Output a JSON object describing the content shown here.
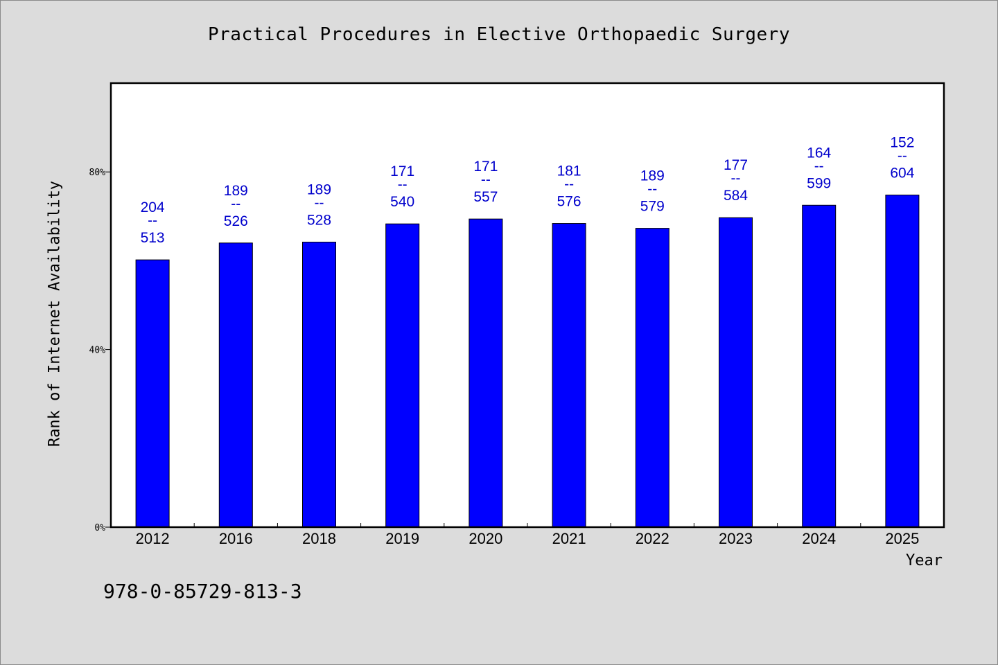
{
  "chart_data": {
    "type": "bar",
    "title": "Practical Procedures in Elective Orthopaedic Surgery",
    "xlabel": "Year",
    "ylabel": "Rank of Internet Availability",
    "categories": [
      "2012",
      "2016",
      "2018",
      "2019",
      "2020",
      "2021",
      "2022",
      "2023",
      "2024",
      "2025"
    ],
    "values": [
      60.2,
      64.0,
      64.2,
      68.3,
      69.4,
      68.4,
      67.3,
      69.7,
      72.5,
      74.8
    ],
    "value_unit": "%",
    "ylim": [
      0,
      100
    ],
    "yticks": [
      0,
      40,
      80
    ],
    "ytick_labels": [
      "0%",
      "40%",
      "80%"
    ],
    "data_labels": [
      {
        "top": "204",
        "sep": "--",
        "bottom": "513"
      },
      {
        "top": "189",
        "sep": "--",
        "bottom": "526"
      },
      {
        "top": "189",
        "sep": "--",
        "bottom": "528"
      },
      {
        "top": "171",
        "sep": "--",
        "bottom": "540"
      },
      {
        "top": "171",
        "sep": "--",
        "bottom": "557"
      },
      {
        "top": "181",
        "sep": "--",
        "bottom": "576"
      },
      {
        "top": "189",
        "sep": "--",
        "bottom": "579"
      },
      {
        "top": "177",
        "sep": "--",
        "bottom": "584"
      },
      {
        "top": "164",
        "sep": "--",
        "bottom": "599"
      },
      {
        "top": "152",
        "sep": "--",
        "bottom": "604"
      }
    ],
    "grid": false,
    "bar_color": "#0000ff",
    "label_color": "#0000cc",
    "background_color": "#dcdcdc",
    "plot_background": "#ffffff"
  },
  "footer": {
    "isbn": "978-0-85729-813-3"
  }
}
